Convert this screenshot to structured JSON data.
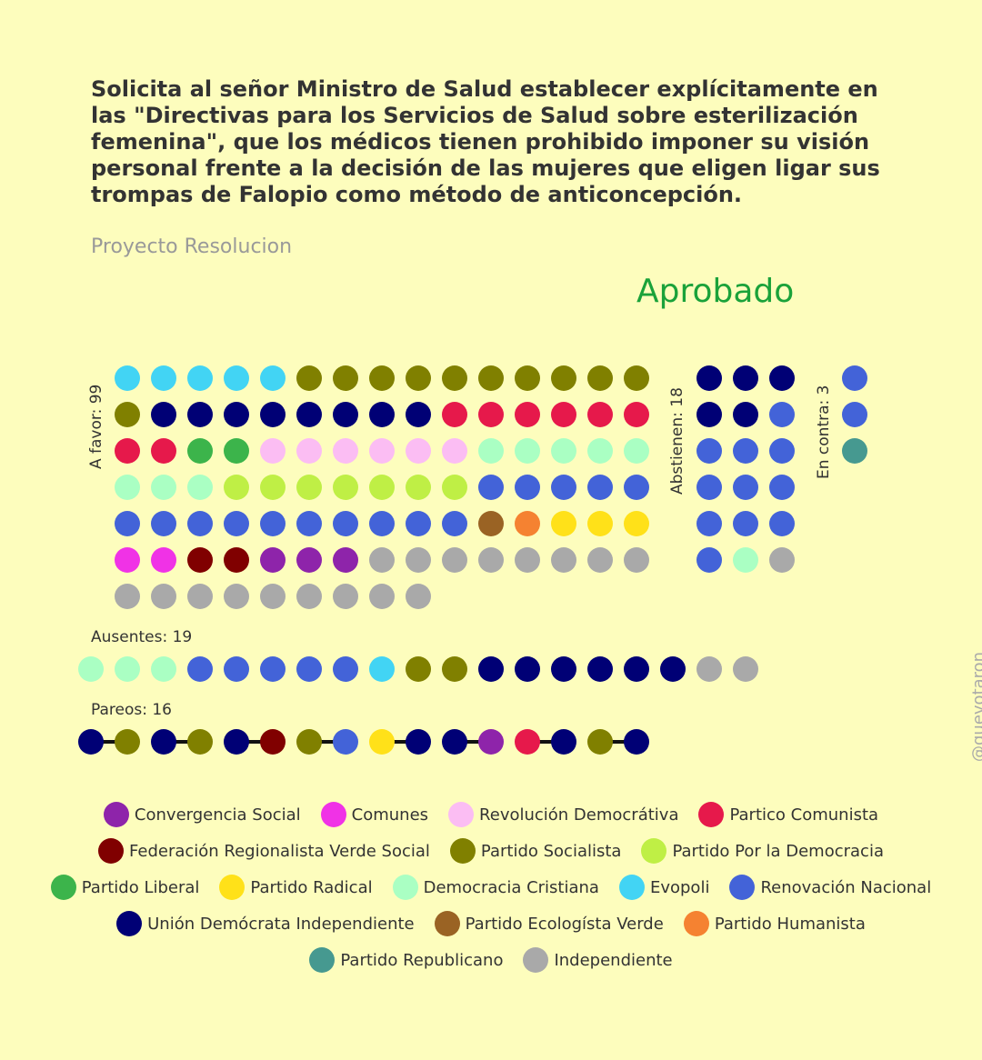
{
  "title": "Solicita al señor Ministro de Salud establecer explícitamente en las \"Directivas para los Servicios de Salud sobre esterilización femenina\", que los médicos tienen prohibido imponer su visión personal frente a la decisión de las mujeres que eligen ligar sus trompas de Falopio como método de anticoncepción.",
  "subtitle": "Proyecto Resolucion",
  "result": "Aprobado",
  "result_color": "#1aa23a",
  "background_color": "#fdfdbd",
  "credit": "@quevotaron",
  "parties": [
    {
      "key": "CS",
      "name": "Convergencia Social",
      "color": "#8e24aa"
    },
    {
      "key": "COM",
      "name": "Comunes",
      "color": "#f032e6"
    },
    {
      "key": "RD",
      "name": "Revolución Democrátiva",
      "color": "#fbbdf3"
    },
    {
      "key": "PC",
      "name": "Partico Comunista",
      "color": "#e6194b"
    },
    {
      "key": "FRVS",
      "name": "Federación Regionalista Verde Social",
      "color": "#800000"
    },
    {
      "key": "PS",
      "name": "Partido Socialista",
      "color": "#808000"
    },
    {
      "key": "PPD",
      "name": "Partido Por la Democracia",
      "color": "#bfef45"
    },
    {
      "key": "PL",
      "name": "Partido Liberal",
      "color": "#3cb44b"
    },
    {
      "key": "PR",
      "name": "Partido Radical",
      "color": "#ffe119"
    },
    {
      "key": "DC",
      "name": "Democracia Cristiana",
      "color": "#aaffc3"
    },
    {
      "key": "EVO",
      "name": "Evopoli",
      "color": "#42d4f4"
    },
    {
      "key": "RN",
      "name": "Renovación Nacional",
      "color": "#4363d8"
    },
    {
      "key": "UDI",
      "name": "Unión Demócrata Independiente",
      "color": "#000075"
    },
    {
      "key": "PEV",
      "name": "Partido Ecologísta Verde",
      "color": "#9a6324"
    },
    {
      "key": "PH",
      "name": "Partido Humanista",
      "color": "#f58231"
    },
    {
      "key": "REP",
      "name": "Partido Republicano",
      "color": "#469990"
    },
    {
      "key": "IND",
      "name": "Independiente",
      "color": "#a9a9a9"
    }
  ],
  "legend_rows": [
    [
      0,
      1,
      2,
      3
    ],
    [
      4,
      5,
      6
    ],
    [
      7,
      8,
      9,
      10,
      11
    ],
    [
      12,
      13,
      14
    ],
    [
      15,
      16
    ]
  ],
  "chart_data": {
    "type": "dot-matrix",
    "groups": [
      {
        "id": "favor",
        "label": "A favor: 99",
        "count": 99,
        "columns": 15,
        "rows": [
          [
            "EVO",
            "EVO",
            "EVO",
            "EVO",
            "EVO",
            "PS",
            "PS",
            "PS",
            "PS",
            "PS",
            "PS",
            "PS",
            "PS",
            "PS",
            "PS"
          ],
          [
            "PS",
            "UDI",
            "UDI",
            "UDI",
            "UDI",
            "UDI",
            "UDI",
            "UDI",
            "UDI",
            "PC",
            "PC",
            "PC",
            "PC",
            "PC",
            "PC"
          ],
          [
            "PC",
            "PC",
            "PL",
            "PL",
            "RD",
            "RD",
            "RD",
            "RD",
            "RD",
            "RD",
            "DC",
            "DC",
            "DC",
            "DC",
            "DC"
          ],
          [
            "DC",
            "DC",
            "DC",
            "PPD",
            "PPD",
            "PPD",
            "PPD",
            "PPD",
            "PPD",
            "PPD",
            "RN",
            "RN",
            "RN",
            "RN",
            "RN"
          ],
          [
            "RN",
            "RN",
            "RN",
            "RN",
            "RN",
            "RN",
            "RN",
            "RN",
            "RN",
            "RN",
            "PEV",
            "PH",
            "PR",
            "PR",
            "PR"
          ],
          [
            "COM",
            "COM",
            "FRVS",
            "FRVS",
            "CS",
            "CS",
            "CS",
            "IND",
            "IND",
            "IND",
            "IND",
            "IND",
            "IND",
            "IND",
            "IND"
          ],
          [
            "IND",
            "IND",
            "IND",
            "IND",
            "IND",
            "IND",
            "IND",
            "IND",
            "IND"
          ]
        ]
      },
      {
        "id": "abstienen",
        "label": "Abstienen: 18",
        "count": 18,
        "columns": 3,
        "rows": [
          [
            "UDI",
            "UDI",
            "UDI"
          ],
          [
            "UDI",
            "UDI",
            "RN"
          ],
          [
            "RN",
            "RN",
            "RN"
          ],
          [
            "RN",
            "RN",
            "RN"
          ],
          [
            "RN",
            "RN",
            "RN"
          ],
          [
            "RN",
            "DC",
            "IND"
          ]
        ]
      },
      {
        "id": "contra",
        "label": "En contra: 3",
        "count": 3,
        "columns": 1,
        "rows": [
          [
            "RN"
          ],
          [
            "RN"
          ],
          [
            "REP"
          ]
        ]
      },
      {
        "id": "ausentes",
        "label": "Ausentes: 19",
        "count": 19,
        "rows": [
          [
            "DC",
            "DC",
            "DC",
            "RN",
            "RN",
            "RN",
            "RN",
            "RN",
            "EVO",
            "PS",
            "PS",
            "UDI",
            "UDI",
            "UDI",
            "UDI",
            "UDI",
            "UDI",
            "IND",
            "IND"
          ]
        ]
      },
      {
        "id": "pareos",
        "label": "Pareos: 16",
        "count": 16,
        "rows": [
          [
            "UDI",
            "PS",
            "UDI",
            "PS",
            "UDI",
            "FRVS",
            "PS",
            "RN",
            "PR",
            "UDI",
            "UDI",
            "CS",
            "PC",
            "UDI",
            "PS",
            "UDI"
          ]
        ]
      }
    ]
  }
}
